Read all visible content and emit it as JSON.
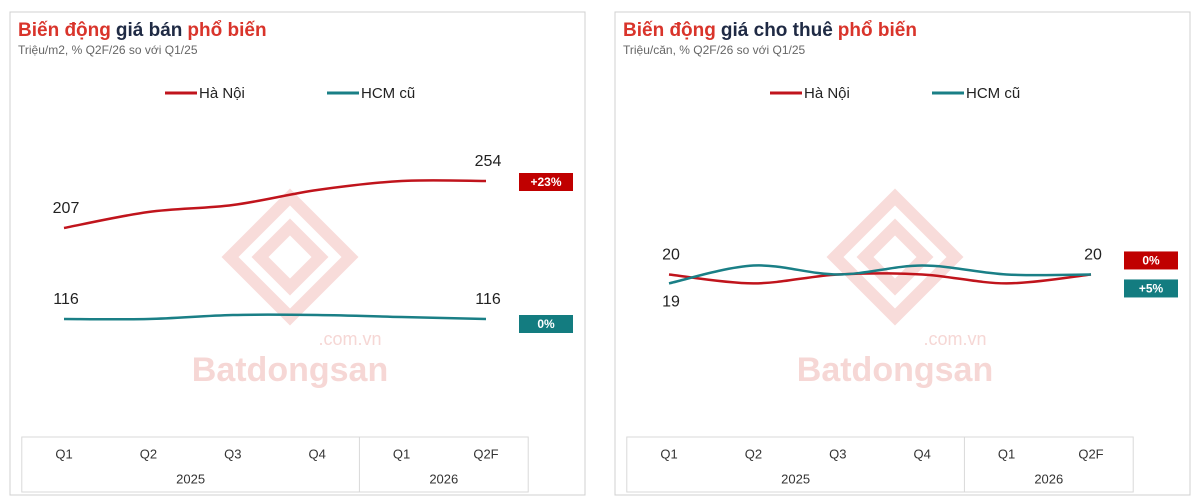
{
  "chart_data": [
    {
      "type": "line",
      "title_parts": [
        {
          "text": "Biến động",
          "color": "#d9342b"
        },
        {
          "text": "giá bán",
          "color": "#1f2a44"
        },
        {
          "text": "phổ biến",
          "color": "#d9342b"
        }
      ],
      "subtitle": "Triệu/m2, % Q2F/26 so với Q1/25",
      "categories": [
        "Q1",
        "Q2",
        "Q3",
        "Q4",
        "Q1",
        "Q2F"
      ],
      "category_groups": [
        "2025",
        "2025",
        "2025",
        "2025",
        "2026",
        "2026"
      ],
      "ylim": [
        0,
        330
      ],
      "series": [
        {
          "name": "Hà Nội",
          "color": "#c0141c",
          "values": [
            207,
            223,
            230,
            245,
            254,
            254
          ],
          "change": "+23%",
          "change_color": "#c00000"
        },
        {
          "name": "HCM cũ",
          "color": "#1a7f86",
          "values": [
            116,
            116,
            120,
            120,
            118,
            116
          ],
          "change": "0%",
          "change_color": "#137c80"
        }
      ],
      "watermark": [
        "Batdongsan",
        ".com.vn"
      ]
    },
    {
      "type": "line",
      "title_parts": [
        {
          "text": "Biến động",
          "color": "#d9342b"
        },
        {
          "text": "giá cho thuê",
          "color": "#1f2a44"
        },
        {
          "text": "phổ biến",
          "color": "#d9342b"
        }
      ],
      "subtitle": "Triệu/căn, % Q2F/26 so với Q1/25",
      "categories": [
        "Q1",
        "Q2",
        "Q3",
        "Q4",
        "Q1",
        "Q2F"
      ],
      "category_groups": [
        "2025",
        "2025",
        "2025",
        "2025",
        "2026",
        "2026"
      ],
      "ylim": [
        2,
        39
      ],
      "series": [
        {
          "name": "Hà Nội",
          "color": "#c0141c",
          "values": [
            20,
            19,
            20,
            20,
            19,
            20
          ],
          "change": "0%",
          "change_color": "#c00000"
        },
        {
          "name": "HCM cũ",
          "color": "#1a7f86",
          "values": [
            19,
            21,
            20,
            21,
            20,
            20
          ],
          "change": "+5%",
          "change_color": "#137c80"
        }
      ],
      "watermark": [
        "Batdongsan",
        ".com.vn"
      ]
    }
  ]
}
